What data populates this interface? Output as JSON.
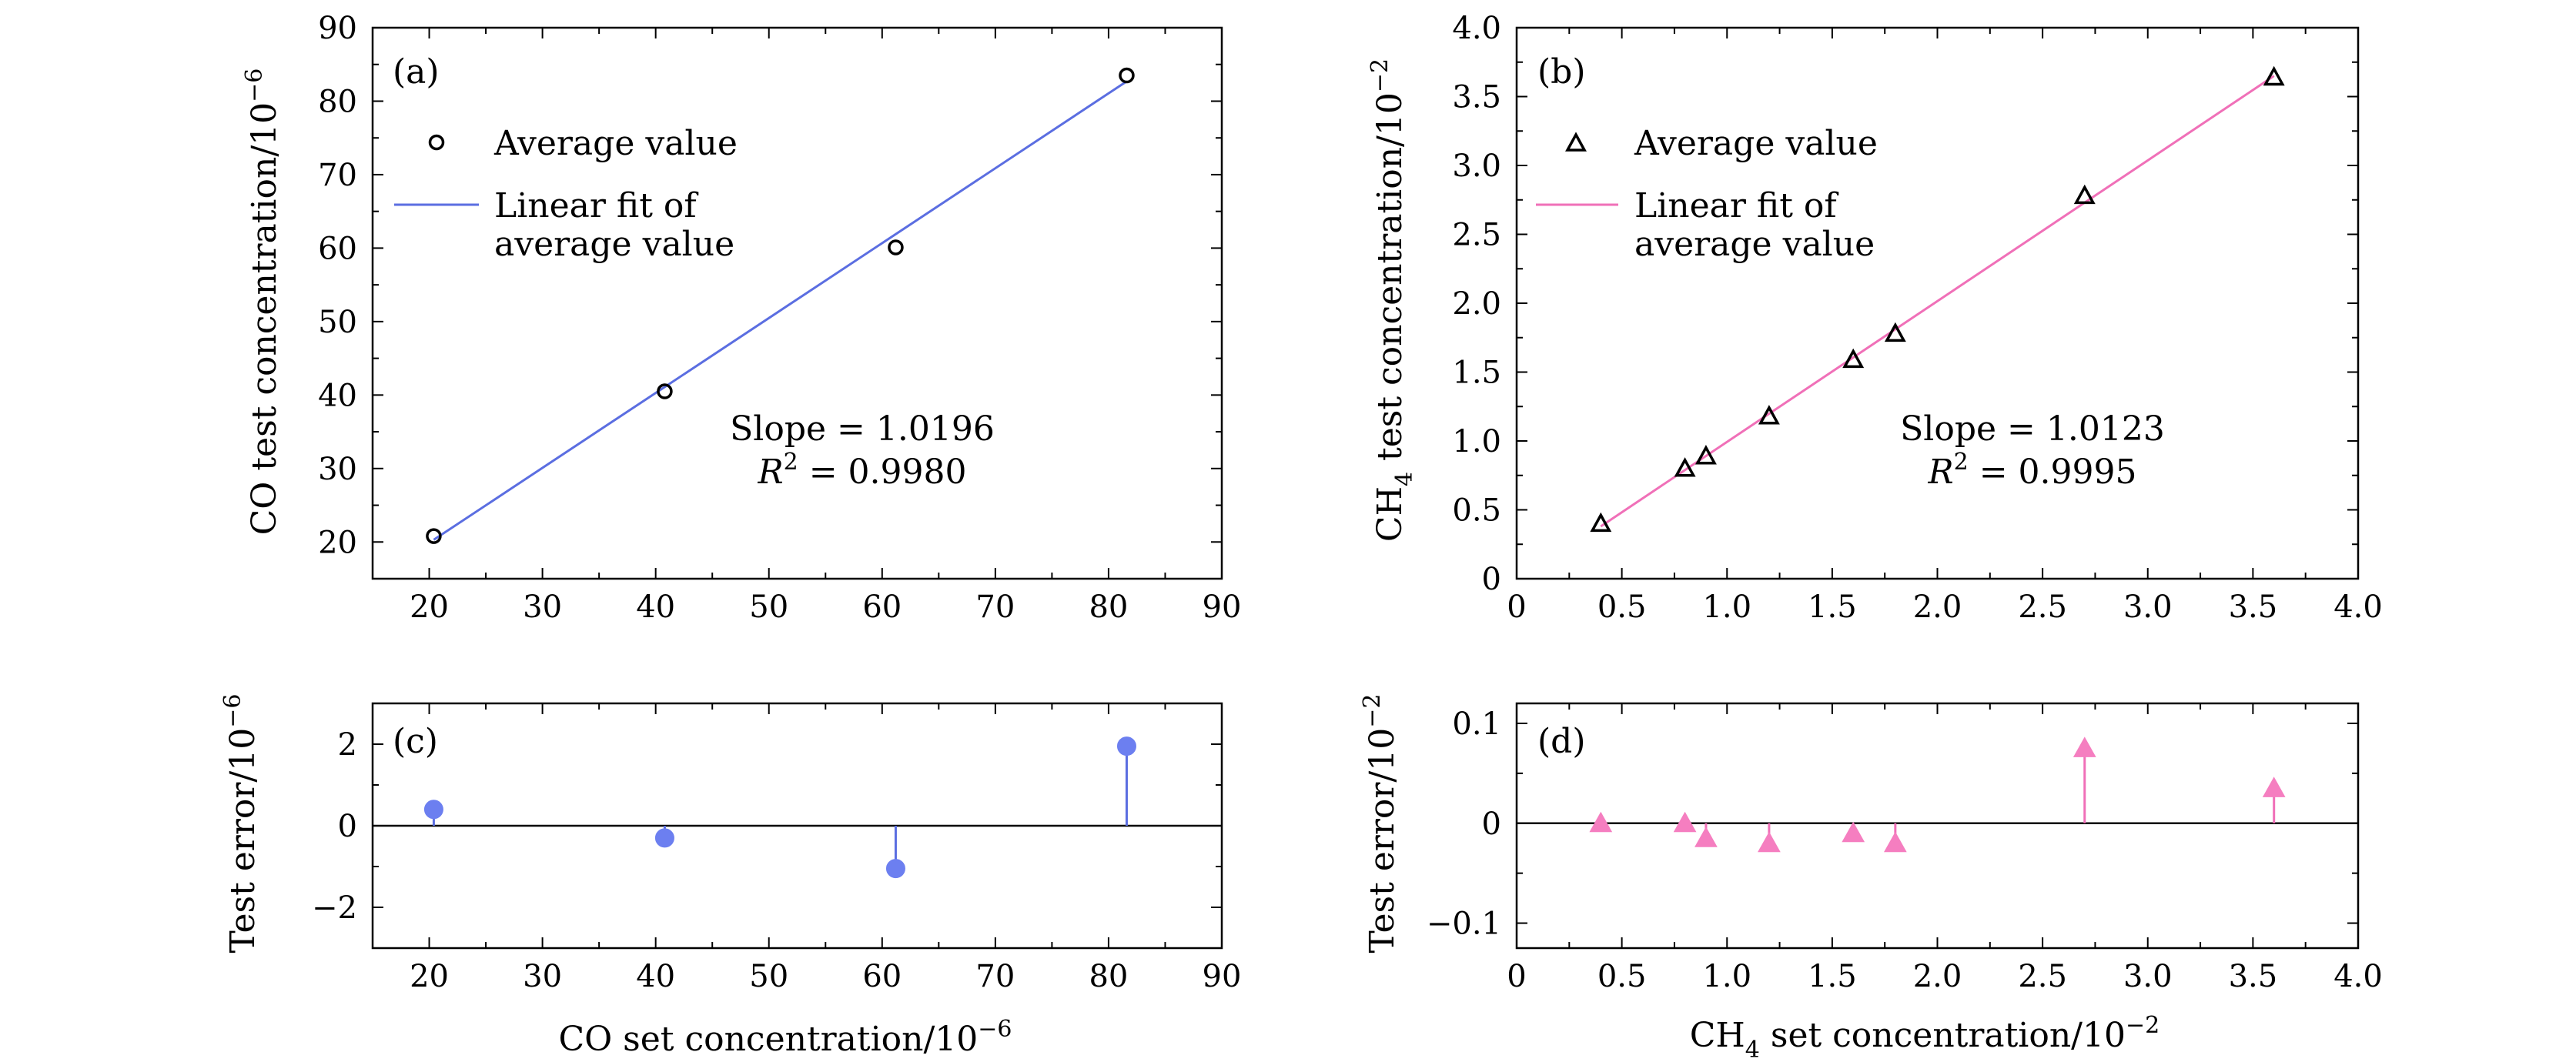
{
  "colors": {
    "co_line": "#5b6ee1",
    "ch4_line": "#f070b8",
    "co_marker": "#6c7ff0",
    "ch4_marker": "#f57ec0",
    "axis": "#000000"
  },
  "chart_data": [
    {
      "type": "scatter",
      "panel_label": "(a)",
      "xlabel": "",
      "ylabel": "CO test concentration/10",
      "ylabel_exp": "−6",
      "xlim": [
        15,
        90
      ],
      "ylim": [
        15,
        90
      ],
      "xticks": [
        "20",
        "30",
        "40",
        "50",
        "60",
        "70",
        "80",
        "90"
      ],
      "yticks": [
        "20",
        "30",
        "40",
        "50",
        "60",
        "70",
        "80",
        "90"
      ],
      "legend": {
        "marker_label": "Average value",
        "fit_label_line1": "Linear fit of",
        "fit_label_line2": "average value",
        "placement": "top-left"
      },
      "annotation": {
        "slope": "Slope = 1.0196",
        "r2_prefix": "R",
        "r2_sup": "2",
        "r2_value": " = 0.9980"
      },
      "series": [
        {
          "name": "Average value",
          "marker": "circle-open",
          "x": [
            20.4,
            40.8,
            61.2,
            81.6
          ],
          "y": [
            20.8,
            40.5,
            60.1,
            83.5
          ]
        }
      ],
      "fit": {
        "name": "Linear fit of average value",
        "x": [
          20.4,
          81.6
        ],
        "y": [
          20.3,
          82.7
        ]
      }
    },
    {
      "type": "scatter",
      "panel_label": "(b)",
      "xlabel": "",
      "ylabel": "CH",
      "ylabel_sub": "4",
      "ylabel_rest": " test concentration/10",
      "ylabel_exp": "−2",
      "xlim": [
        0,
        4.0
      ],
      "ylim": [
        0,
        4.0
      ],
      "xticks": [
        "0",
        "0.5",
        "1.0",
        "1.5",
        "2.0",
        "2.5",
        "3.0",
        "3.5",
        "4.0"
      ],
      "yticks": [
        "0",
        "0.5",
        "1.0",
        "1.5",
        "2.0",
        "2.5",
        "3.0",
        "3.5",
        "4.0"
      ],
      "legend": {
        "marker_label": "Average value",
        "fit_label_line1": "Linear fit of",
        "fit_label_line2": "average value",
        "placement": "top-left"
      },
      "annotation": {
        "slope": "Slope = 1.0123",
        "r2_prefix": "R",
        "r2_sup": "2",
        "r2_value": " = 0.9995"
      },
      "series": [
        {
          "name": "Average value",
          "marker": "triangle-open",
          "x": [
            0.4,
            0.8,
            0.9,
            1.2,
            1.6,
            1.8,
            2.7,
            3.6
          ],
          "y": [
            0.4,
            0.8,
            0.89,
            1.18,
            1.59,
            1.78,
            2.78,
            3.64
          ]
        }
      ],
      "fit": {
        "name": "Linear fit of average value",
        "x": [
          0.4,
          3.6
        ],
        "y": [
          0.38,
          3.65
        ]
      }
    },
    {
      "type": "stem",
      "panel_label": "(c)",
      "xlabel": "CO set concentration/10",
      "xlabel_exp": "−6",
      "ylabel": "Test error/10",
      "ylabel_exp": "−6",
      "xlim": [
        15,
        90
      ],
      "ylim": [
        -3,
        3
      ],
      "xticks": [
        "20",
        "30",
        "40",
        "50",
        "60",
        "70",
        "80",
        "90"
      ],
      "yticks": [
        "−2",
        "0",
        "2"
      ],
      "series": [
        {
          "marker": "circle-filled",
          "x": [
            20.4,
            40.8,
            61.2,
            81.6
          ],
          "y": [
            0.4,
            -0.3,
            -1.05,
            1.95
          ]
        }
      ]
    },
    {
      "type": "stem",
      "panel_label": "(d)",
      "xlabel": "CH",
      "xlabel_sub": "4",
      "xlabel_rest": " set concentration/10",
      "xlabel_exp": "−2",
      "ylabel": "Test error/10",
      "ylabel_exp": "−2",
      "xlim": [
        0,
        4.0
      ],
      "ylim": [
        -0.125,
        0.12
      ],
      "xticks": [
        "0",
        "0.5",
        "1.0",
        "1.5",
        "2.0",
        "2.5",
        "3.0",
        "3.5",
        "4.0"
      ],
      "yticks": [
        "−0.1",
        "0",
        "0.1"
      ],
      "series": [
        {
          "marker": "triangle-filled",
          "x": [
            0.4,
            0.8,
            0.9,
            1.2,
            1.6,
            1.8,
            2.7,
            3.6
          ],
          "y": [
            0.0,
            0.0,
            -0.015,
            -0.02,
            -0.01,
            -0.02,
            0.075,
            0.035
          ]
        }
      ]
    }
  ]
}
